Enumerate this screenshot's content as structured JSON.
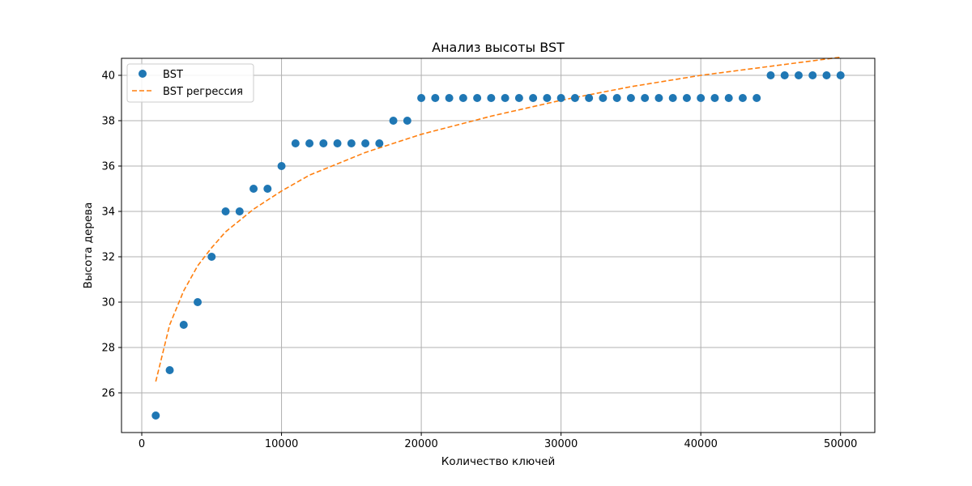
{
  "chart_data": {
    "type": "scatter",
    "title": "Анализ высоты BST",
    "xlabel": "Количество ключей",
    "ylabel": "Высота дерева",
    "xlim": [
      -1450,
      52450
    ],
    "ylim": [
      24.25,
      40.75
    ],
    "xticks": [
      0,
      10000,
      20000,
      30000,
      40000,
      50000
    ],
    "yticks": [
      26,
      28,
      30,
      32,
      34,
      36,
      38,
      40
    ],
    "grid": true,
    "legend_position": "upper-left",
    "series": [
      {
        "name": "BST",
        "kind": "scatter",
        "color": "#1f77b4",
        "x": [
          1000,
          2000,
          3000,
          4000,
          5000,
          6000,
          7000,
          8000,
          9000,
          10000,
          11000,
          12000,
          13000,
          14000,
          15000,
          16000,
          17000,
          18000,
          19000,
          20000,
          21000,
          22000,
          23000,
          24000,
          25000,
          26000,
          27000,
          28000,
          29000,
          30000,
          31000,
          32000,
          33000,
          34000,
          35000,
          36000,
          37000,
          38000,
          39000,
          40000,
          41000,
          42000,
          43000,
          44000,
          45000,
          46000,
          47000,
          48000,
          49000,
          50000
        ],
        "y": [
          25,
          27,
          29,
          30,
          32,
          34,
          34,
          35,
          35,
          36,
          37,
          37,
          37,
          37,
          37,
          37,
          37,
          38,
          38,
          39,
          39,
          39,
          39,
          39,
          39,
          39,
          39,
          39,
          39,
          39,
          39,
          39,
          39,
          39,
          39,
          39,
          39,
          39,
          39,
          39,
          39,
          39,
          39,
          39,
          40,
          40,
          40,
          40,
          40,
          40
        ]
      },
      {
        "name": "BST регрессия",
        "kind": "line",
        "style": "dashed",
        "color": "#ff7f0e",
        "x": [
          1000,
          2000,
          3000,
          4000,
          5000,
          6000,
          7000,
          8000,
          9000,
          10000,
          12000,
          14000,
          16000,
          18000,
          20000,
          25000,
          30000,
          35000,
          40000,
          45000,
          50000
        ],
        "y": [
          26.5,
          29.0,
          30.5,
          31.6,
          32.4,
          33.1,
          33.6,
          34.1,
          34.5,
          34.9,
          35.6,
          36.1,
          36.6,
          37.0,
          37.4,
          38.2,
          38.9,
          39.5,
          40.0,
          40.4,
          40.8
        ]
      }
    ]
  }
}
